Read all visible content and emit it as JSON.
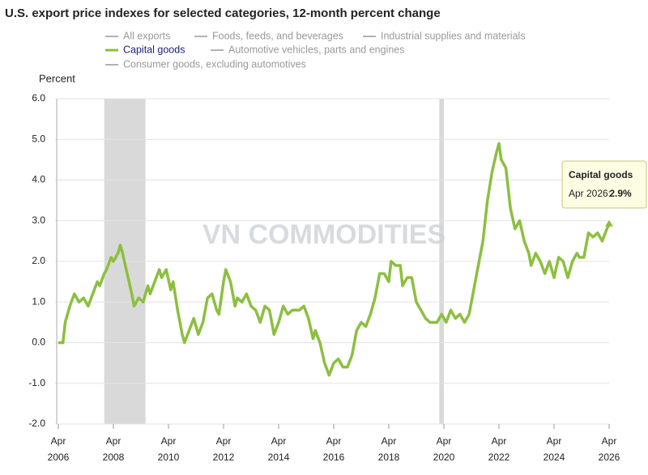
{
  "chart_data": {
    "type": "line",
    "title": "U.S. export price indexes for selected categories, 12-month percent change",
    "y_label": "Percent",
    "watermark": "VN COMMODITIES",
    "series": [
      {
        "name": "All exports",
        "color": "#888888",
        "hidden": true
      },
      {
        "name": "Foods, feeds, and beverages",
        "color": "#888888",
        "hidden": true
      },
      {
        "name": "Industrial supplies and materials",
        "color": "#888888",
        "hidden": true
      },
      {
        "name": "Capital goods",
        "color": "#8cbf3f",
        "hidden": false,
        "x": [
          "2006-04",
          "2006-06",
          "2006-07",
          "2006-09",
          "2006-11",
          "2007-01",
          "2007-03",
          "2007-05",
          "2007-07",
          "2007-09",
          "2007-10",
          "2007-12",
          "2008-01",
          "2008-03",
          "2008-04",
          "2008-06",
          "2008-07",
          "2008-08",
          "2008-10",
          "2008-12",
          "2009-01",
          "2009-03",
          "2009-05",
          "2009-07",
          "2009-08",
          "2009-10",
          "2009-12",
          "2010-01",
          "2010-03",
          "2010-05",
          "2010-06",
          "2010-08",
          "2010-10",
          "2010-11",
          "2011-01",
          "2011-03",
          "2011-05",
          "2011-07",
          "2011-09",
          "2011-11",
          "2012-01",
          "2012-02",
          "2012-04",
          "2012-05",
          "2012-07",
          "2012-09",
          "2012-10",
          "2012-12",
          "2013-02",
          "2013-04",
          "2013-06",
          "2013-08",
          "2013-10",
          "2013-12",
          "2014-02",
          "2014-04",
          "2014-06",
          "2014-08",
          "2014-10",
          "2015-01",
          "2015-03",
          "2015-05",
          "2015-07",
          "2015-08",
          "2015-10",
          "2015-12",
          "2016-02",
          "2016-04",
          "2016-06",
          "2016-08",
          "2016-10",
          "2016-12",
          "2017-02",
          "2017-04",
          "2017-06",
          "2017-08",
          "2017-10",
          "2017-12",
          "2018-02",
          "2018-04",
          "2018-05",
          "2018-07",
          "2018-09",
          "2018-10",
          "2018-12",
          "2019-02",
          "2019-04",
          "2019-06",
          "2019-08",
          "2019-10",
          "2020-01",
          "2020-03",
          "2020-05",
          "2020-07",
          "2020-09",
          "2020-11",
          "2021-01",
          "2021-03",
          "2021-05",
          "2021-07",
          "2021-09",
          "2021-11",
          "2022-01",
          "2022-03",
          "2022-04",
          "2022-05",
          "2022-07",
          "2022-09",
          "2022-11",
          "2023-01",
          "2023-03",
          "2023-05",
          "2023-06",
          "2023-08",
          "2023-10",
          "2023-12",
          "2024-02",
          "2024-04",
          "2024-06",
          "2024-08",
          "2024-10",
          "2024-12",
          "2025-02",
          "2025-03",
          "2025-05",
          "2025-07",
          "2025-09",
          "2025-11",
          "2026-01",
          "2026-03",
          "2026-04"
        ],
        "values": [
          0,
          0,
          0.5,
          0.9,
          1.2,
          1.0,
          1.1,
          0.9,
          1.2,
          1.5,
          1.4,
          1.7,
          1.8,
          2.1,
          2.0,
          2.2,
          2.4,
          2.2,
          1.7,
          1.2,
          0.9,
          1.1,
          1.0,
          1.4,
          1.2,
          1.5,
          1.8,
          1.6,
          1.8,
          1.3,
          1.5,
          0.8,
          0.2,
          0,
          0.3,
          0.6,
          0.2,
          0.5,
          1.1,
          1.2,
          0.8,
          0.7,
          1.5,
          1.8,
          1.5,
          0.9,
          1.1,
          1.0,
          1.2,
          0.9,
          0.8,
          0.5,
          0.9,
          0.8,
          0.2,
          0.5,
          0.9,
          0.7,
          0.8,
          0.8,
          0.9,
          0.6,
          0.1,
          0.3,
          0,
          -0.5,
          -0.8,
          -0.5,
          -0.4,
          -0.6,
          -0.6,
          -0.3,
          0.3,
          0.5,
          0.4,
          0.7,
          1.1,
          1.7,
          1.7,
          1.5,
          2.0,
          1.9,
          1.9,
          1.4,
          1.6,
          1.6,
          1.0,
          0.8,
          0.6,
          0.5,
          0.5,
          0.7,
          0.5,
          0.8,
          0.6,
          0.7,
          0.5,
          0.7,
          1.3,
          1.9,
          2.5,
          3.5,
          4.2,
          4.7,
          4.9,
          4.5,
          4.3,
          3.3,
          2.8,
          3.0,
          2.5,
          2.2,
          1.9,
          2.2,
          2.0,
          1.7,
          2.0,
          1.6,
          2.1,
          2.0,
          1.6,
          2.0,
          2.2,
          2.1,
          2.1,
          2.7,
          2.6,
          2.7,
          2.5,
          2.8,
          2.9
        ]
      },
      {
        "name": "Automotive vehicles, parts and engines",
        "color": "#888888",
        "hidden": true
      },
      {
        "name": "Consumer goods, excluding automotives",
        "color": "#888888",
        "hidden": true
      }
    ],
    "shaded_ranges": [
      [
        "2007-12",
        "2009-06"
      ],
      [
        "2020-02",
        "2020-04"
      ]
    ],
    "xlim": [
      "2006-04",
      "2026-04"
    ],
    "ylim": [
      -2,
      6
    ],
    "yticks": [
      {
        "value": 6,
        "label": "6.0"
      },
      {
        "value": 5,
        "label": "5.0"
      },
      {
        "value": 4,
        "label": "4.0"
      },
      {
        "value": 3,
        "label": "3.0"
      },
      {
        "value": 2,
        "label": "2.0"
      },
      {
        "value": 1,
        "label": "1.0"
      },
      {
        "value": 0,
        "label": "0.0"
      },
      {
        "value": -1,
        "label": "-1.0"
      },
      {
        "value": -2,
        "label": "-2.0"
      }
    ],
    "xticks": [
      {
        "value": "2006-04",
        "label": [
          "Apr",
          "2006"
        ]
      },
      {
        "value": "2008-04",
        "label": [
          "Apr",
          "2008"
        ]
      },
      {
        "value": "2010-04",
        "label": [
          "Apr",
          "2010"
        ]
      },
      {
        "value": "2012-04",
        "label": [
          "Apr",
          "2012"
        ]
      },
      {
        "value": "2014-04",
        "label": [
          "Apr",
          "2014"
        ]
      },
      {
        "value": "2016-04",
        "label": [
          "Apr",
          "2016"
        ]
      },
      {
        "value": "2018-04",
        "label": [
          "Apr",
          "2018"
        ]
      },
      {
        "value": "2020-04",
        "label": [
          "Apr",
          "2020"
        ]
      },
      {
        "value": "2022-04",
        "label": [
          "Apr",
          "2022"
        ]
      },
      {
        "value": "2024-04",
        "label": [
          "Apr",
          "2024"
        ]
      },
      {
        "value": "2026-04",
        "label": [
          "Apr",
          "2026"
        ]
      }
    ],
    "grid": true,
    "tooltip": {
      "title": "Capital goods",
      "date_label": "Apr 2026:",
      "value": 2.9,
      "value_label": "2.9%"
    }
  }
}
